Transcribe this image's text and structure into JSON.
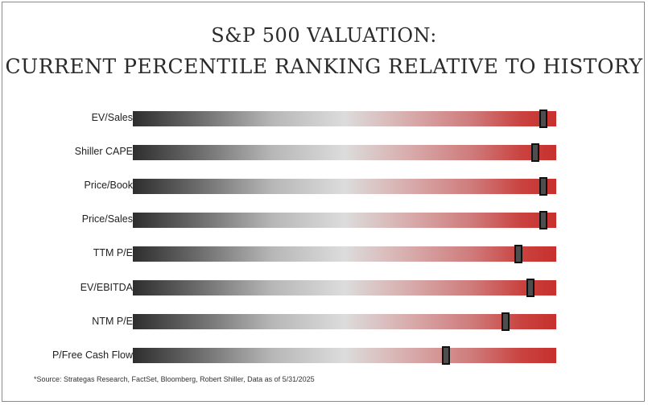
{
  "chart_data": {
    "type": "bar",
    "title": "S&P 500 VALUATION:",
    "subtitle": "CURRENT PERCENTILE RANKING RELATIVE TO HISTORY",
    "categories": [
      "EV/Sales",
      "Shiller CAPE",
      "Price/Book",
      "Price/Sales",
      "TTM P/E",
      "EV/EBITDA",
      "NTM P/E",
      "P/Free Cash Flow"
    ],
    "series": [
      {
        "values": [
          0.97,
          0.95,
          0.97,
          0.97,
          0.91,
          0.94,
          0.88,
          0.74
        ]
      }
    ],
    "xlim": [
      0,
      1
    ],
    "colors": {
      "low": "#2e2e2e",
      "mid": "#dcdcdc",
      "high": "#c8302d",
      "marker": "#4e4e4e"
    },
    "source": "*Source: Strategas Research, FactSet, Bloomberg, Robert Shiller, Data as of 5/31/2025"
  }
}
